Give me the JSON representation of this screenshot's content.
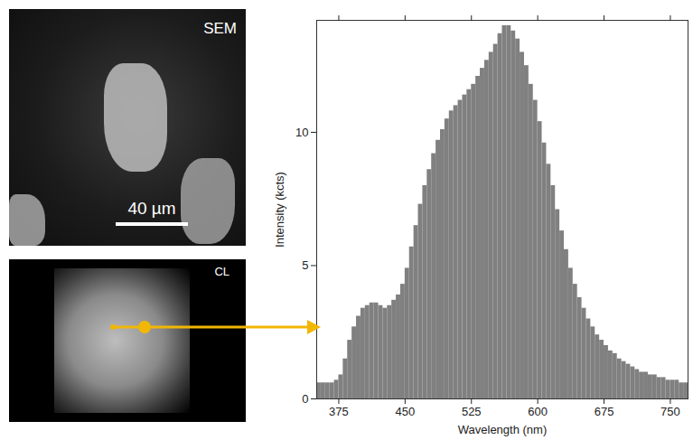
{
  "chart_data": {
    "type": "histogram",
    "xlabel": "Wavelength (nm)",
    "ylabel": "Intensity (kcts)",
    "bins": [
      350,
      355,
      360,
      365,
      370,
      375,
      380,
      385,
      390,
      395,
      400,
      405,
      410,
      415,
      420,
      425,
      430,
      435,
      440,
      445,
      450,
      455,
      460,
      465,
      470,
      475,
      480,
      485,
      490,
      495,
      500,
      505,
      510,
      515,
      520,
      525,
      530,
      535,
      540,
      545,
      550,
      555,
      560,
      565,
      570,
      575,
      580,
      585,
      590,
      595,
      600,
      605,
      610,
      615,
      620,
      625,
      630,
      635,
      640,
      645,
      650,
      655,
      660,
      665,
      670,
      675,
      680,
      685,
      690,
      695,
      700,
      705,
      710,
      715,
      720,
      725,
      730,
      735,
      740,
      745,
      750,
      755,
      760,
      765,
      770
    ],
    "values": [
      0.6,
      0.6,
      0.6,
      0.6,
      0.7,
      0.9,
      1.5,
      2.2,
      2.7,
      3.1,
      3.4,
      3.5,
      3.6,
      3.6,
      3.5,
      3.4,
      3.5,
      3.7,
      3.9,
      4.3,
      4.9,
      5.7,
      6.5,
      7.3,
      8.0,
      8.6,
      9.2,
      9.7,
      10.1,
      10.5,
      10.8,
      11.0,
      11.2,
      11.4,
      11.6,
      11.8,
      12.1,
      12.4,
      12.7,
      13.0,
      13.3,
      13.7,
      14.0,
      14.0,
      13.8,
      13.5,
      13.0,
      12.5,
      11.8,
      11.2,
      10.4,
      9.6,
      8.8,
      8.0,
      7.1,
      6.3,
      5.6,
      4.9,
      4.3,
      3.8,
      3.4,
      3.0,
      2.7,
      2.4,
      2.2,
      2.0,
      1.8,
      1.7,
      1.5,
      1.4,
      1.3,
      1.2,
      1.1,
      1.0,
      1.0,
      0.9,
      0.9,
      0.8,
      0.8,
      0.7,
      0.7,
      0.7,
      0.6,
      0.6
    ],
    "color": "#808080",
    "xlim": [
      350,
      770
    ],
    "ylim": [
      0,
      14.2
    ],
    "xticks": [
      375,
      450,
      525,
      600,
      675,
      750
    ],
    "yticks": [
      0,
      5,
      10
    ]
  },
  "panels": [
    {
      "label": "SEM",
      "scale_bar": "40 µm"
    },
    {
      "label": "CL"
    }
  ]
}
